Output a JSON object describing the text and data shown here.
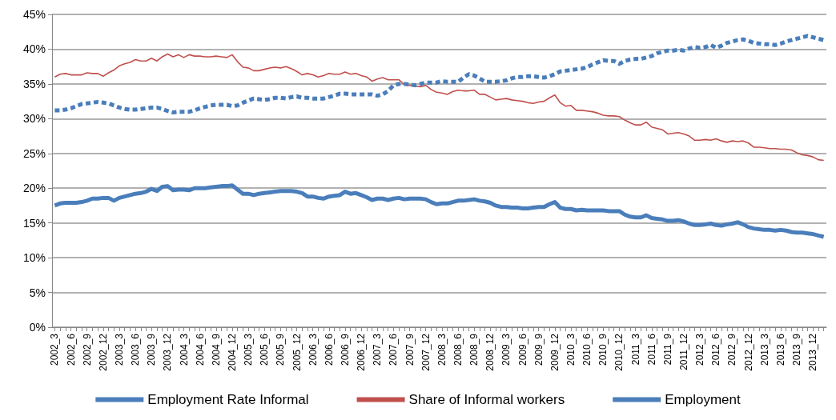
{
  "chart_data": {
    "type": "line",
    "categories": [
      "2002_3",
      null,
      null,
      "2002_6",
      null,
      null,
      "2002_9",
      null,
      null,
      "2002_12",
      null,
      null,
      "2003_3",
      null,
      null,
      "2003_6",
      null,
      null,
      "2003_9",
      null,
      null,
      "2003_12",
      null,
      null,
      "2004_3",
      null,
      null,
      "2004_6",
      null,
      null,
      "2004_9",
      null,
      null,
      "2004_12",
      null,
      null,
      "2005_3",
      null,
      null,
      "2005_6",
      null,
      null,
      "2005_9",
      null,
      null,
      "2005_12",
      null,
      null,
      "2006_3",
      null,
      null,
      "2006_6",
      null,
      null,
      "2006_9",
      null,
      null,
      "2006_12",
      null,
      null,
      "2007_3",
      null,
      null,
      "2007_6",
      null,
      null,
      "2007_9",
      null,
      null,
      "2007_12",
      null,
      null,
      "2008_3",
      null,
      null,
      "2008_6",
      null,
      null,
      "2008_9",
      null,
      null,
      "2008_12",
      null,
      null,
      "2009_3",
      null,
      null,
      "2009_6",
      null,
      null,
      "2009_9",
      null,
      null,
      "2009_12",
      null,
      null,
      "2010_3",
      null,
      null,
      "2010_6",
      null,
      null,
      "2010_9",
      null,
      null,
      "2010_12",
      null,
      null,
      "2011_3",
      null,
      null,
      "2011_6",
      null,
      null,
      "2011_9",
      null,
      null,
      "2011_12",
      null,
      null,
      "2012_3",
      null,
      null,
      "2012_6",
      null,
      null,
      "2012_9",
      null,
      null,
      "2012_12",
      null,
      null,
      "2013_3",
      null,
      null,
      "2013_6",
      null,
      null,
      "2013_9",
      null,
      null,
      "2013_12",
      null,
      null
    ],
    "series": [
      {
        "name": "Employment Rate Informal",
        "color": "#4a7ebb",
        "line_style": "solid",
        "values": [
          17.5,
          17.8,
          17.9,
          17.9,
          17.9,
          18.0,
          18.2,
          18.5,
          18.5,
          18.6,
          18.6,
          18.2,
          18.6,
          18.8,
          19.0,
          19.2,
          19.3,
          19.5,
          19.9,
          19.6,
          20.2,
          20.3,
          19.7,
          19.8,
          19.8,
          19.7,
          20.0,
          20.0,
          20.0,
          20.1,
          20.2,
          20.3,
          20.3,
          20.4,
          19.8,
          19.2,
          19.2,
          19.0,
          19.2,
          19.3,
          19.4,
          19.5,
          19.6,
          19.6,
          19.6,
          19.5,
          19.3,
          18.8,
          18.8,
          18.6,
          18.5,
          18.8,
          18.9,
          19.0,
          19.5,
          19.2,
          19.3,
          19.0,
          18.7,
          18.3,
          18.5,
          18.5,
          18.3,
          18.5,
          18.6,
          18.4,
          18.5,
          18.5,
          18.5,
          18.4,
          18.0,
          17.7,
          17.8,
          17.8,
          18.0,
          18.2,
          18.2,
          18.3,
          18.4,
          18.2,
          18.1,
          17.9,
          17.5,
          17.3,
          17.3,
          17.2,
          17.2,
          17.1,
          17.1,
          17.2,
          17.3,
          17.3,
          17.7,
          18.0,
          17.2,
          17.0,
          17.0,
          16.8,
          16.9,
          16.8,
          16.8,
          16.8,
          16.8,
          16.7,
          16.7,
          16.7,
          16.2,
          15.9,
          15.8,
          15.8,
          16.1,
          15.7,
          15.6,
          15.5,
          15.3,
          15.3,
          15.4,
          15.2,
          14.9,
          14.7,
          14.7,
          14.8,
          14.9,
          14.7,
          14.6,
          14.8,
          14.9,
          15.1,
          14.8,
          14.4,
          14.2,
          14.1,
          14.0,
          14.0,
          13.9,
          14.0,
          13.9,
          13.7,
          13.6,
          13.6,
          13.5,
          13.4,
          13.2,
          13.0
        ]
      },
      {
        "name": "Share of Informal workers",
        "color": "#c0504d",
        "line_style": "solid",
        "values": [
          36.0,
          36.4,
          36.5,
          36.3,
          36.3,
          36.3,
          36.6,
          36.5,
          36.5,
          36.1,
          36.6,
          37.0,
          37.6,
          37.9,
          38.1,
          38.5,
          38.3,
          38.3,
          38.7,
          38.3,
          38.9,
          39.3,
          38.9,
          39.2,
          38.8,
          39.2,
          39.0,
          39.0,
          38.9,
          38.9,
          39.0,
          38.9,
          38.8,
          39.2,
          38.2,
          37.4,
          37.3,
          36.9,
          36.9,
          37.1,
          37.3,
          37.4,
          37.3,
          37.5,
          37.2,
          36.8,
          36.3,
          36.5,
          36.3,
          36.0,
          36.2,
          36.5,
          36.4,
          36.4,
          36.7,
          36.4,
          36.5,
          36.2,
          36.0,
          35.4,
          35.7,
          35.9,
          35.6,
          35.6,
          35.6,
          34.9,
          34.8,
          34.7,
          34.6,
          34.8,
          34.2,
          33.8,
          33.7,
          33.5,
          33.9,
          34.1,
          34.0,
          34.0,
          34.1,
          33.5,
          33.5,
          33.1,
          32.7,
          32.8,
          32.9,
          32.7,
          32.6,
          32.5,
          32.3,
          32.2,
          32.4,
          32.5,
          33.0,
          33.4,
          32.3,
          31.8,
          31.9,
          31.2,
          31.2,
          31.1,
          31.0,
          30.8,
          30.5,
          30.4,
          30.4,
          30.3,
          29.8,
          29.4,
          29.1,
          29.1,
          29.5,
          28.8,
          28.6,
          28.4,
          27.8,
          27.9,
          28.0,
          27.8,
          27.5,
          26.9,
          26.9,
          27.0,
          26.9,
          27.1,
          26.8,
          26.6,
          26.8,
          26.7,
          26.8,
          26.5,
          25.9,
          25.9,
          25.8,
          25.7,
          25.7,
          25.6,
          25.6,
          25.5,
          25.1,
          24.8,
          24.7,
          24.5,
          24.1,
          24.0
        ]
      },
      {
        "name": "Employment",
        "color": "#4a7ebb",
        "line_style": "dashed",
        "values": [
          31.2,
          31.2,
          31.3,
          31.5,
          31.8,
          32.1,
          32.2,
          32.3,
          32.4,
          32.3,
          32.2,
          31.9,
          31.6,
          31.4,
          31.3,
          31.3,
          31.4,
          31.5,
          31.6,
          31.6,
          31.4,
          31.1,
          30.9,
          31.0,
          31.0,
          31.0,
          31.2,
          31.5,
          31.7,
          31.9,
          32.0,
          32.0,
          32.0,
          31.8,
          31.9,
          32.3,
          32.6,
          32.9,
          32.8,
          32.7,
          32.8,
          33.0,
          33.0,
          32.9,
          33.1,
          33.2,
          33.0,
          33.0,
          32.9,
          32.9,
          32.9,
          33.1,
          33.3,
          33.6,
          33.6,
          33.5,
          33.5,
          33.5,
          33.5,
          33.5,
          33.3,
          33.5,
          34.0,
          34.8,
          35.0,
          35.0,
          34.9,
          34.8,
          35.0,
          35.2,
          35.2,
          35.2,
          35.4,
          35.3,
          35.3,
          35.3,
          35.9,
          36.4,
          36.2,
          35.8,
          35.3,
          35.3,
          35.3,
          35.4,
          35.5,
          35.8,
          36.0,
          36.0,
          36.1,
          36.1,
          36.0,
          35.9,
          36.1,
          36.4,
          36.8,
          36.9,
          37.0,
          37.1,
          37.2,
          37.4,
          37.8,
          38.1,
          38.4,
          38.3,
          38.3,
          37.9,
          38.3,
          38.5,
          38.6,
          38.6,
          38.8,
          39.0,
          39.4,
          39.6,
          39.8,
          39.8,
          39.9,
          39.8,
          40.1,
          40.3,
          40.2,
          40.3,
          40.6,
          40.2,
          40.5,
          40.9,
          41.1,
          41.3,
          41.4,
          41.2,
          40.9,
          40.8,
          40.7,
          40.7,
          40.6,
          40.8,
          41.1,
          41.3,
          41.5,
          41.7,
          41.9,
          41.7,
          41.5,
          41.3
        ]
      }
    ],
    "ylim": [
      0,
      45
    ],
    "yticks": [
      {
        "value": 0,
        "label": "0%"
      },
      {
        "value": 5,
        "label": "5%"
      },
      {
        "value": 10,
        "label": "10%"
      },
      {
        "value": 15,
        "label": "15%"
      },
      {
        "value": 20,
        "label": "20%"
      },
      {
        "value": 25,
        "label": "25%"
      },
      {
        "value": 30,
        "label": "30%"
      },
      {
        "value": 35,
        "label": "35%"
      },
      {
        "value": 40,
        "label": "40%"
      },
      {
        "value": 45,
        "label": "45%"
      }
    ],
    "grid": "y",
    "legend": "bottom",
    "marker": "none"
  }
}
